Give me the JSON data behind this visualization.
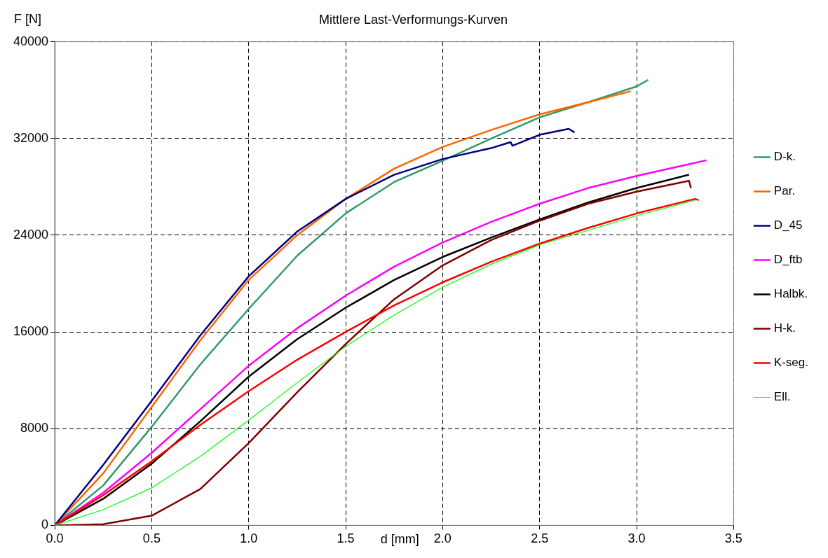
{
  "chart_data": {
    "type": "line",
    "title": "Mittlere Last-Verformungs-Kurven",
    "xlabel": "d [mm]",
    "ylabel": "F [N]",
    "xlim": [
      0,
      3.5
    ],
    "xticks": [
      {
        "value": 0,
        "label": "0.0"
      },
      0.5,
      {
        "value": 1,
        "label": "1.0"
      },
      1.5,
      {
        "value": 2,
        "label": "2.0"
      },
      2.5,
      {
        "value": 3,
        "label": "3.0"
      },
      3.5
    ],
    "ylim": [
      0,
      40000
    ],
    "yticks": [
      0,
      8000,
      16000,
      24000,
      32000,
      40000
    ],
    "grid": true,
    "legend": "right",
    "marker": "none",
    "line_style": "solid",
    "series": [
      {
        "name": "D-k.",
        "color": "#339966",
        "x": [
          0,
          0.25,
          0.5,
          0.75,
          1,
          1.25,
          1.5,
          1.75,
          2,
          2.25,
          2.5,
          2.75,
          3,
          3.06
        ],
        "values": [
          0,
          3300,
          8150,
          13300,
          17900,
          22300,
          25800,
          28400,
          30150,
          32000,
          33750,
          35000,
          36300,
          36850
        ]
      },
      {
        "name": "Par.",
        "color": "#ff6600",
        "x": [
          0,
          0.25,
          0.5,
          0.75,
          1,
          1.25,
          1.5,
          1.75,
          2,
          2.25,
          2.5,
          2.75,
          2.97
        ],
        "values": [
          0,
          4300,
          9800,
          15300,
          20300,
          24000,
          27000,
          29500,
          31300,
          32700,
          34000,
          35000,
          35900
        ]
      },
      {
        "name": "D_45",
        "color": "#000080",
        "x": [
          0,
          0.25,
          0.5,
          0.75,
          1,
          1.25,
          1.5,
          1.75,
          2,
          2.25,
          2.35,
          2.36,
          2.5,
          2.65,
          2.68
        ],
        "values": [
          0,
          5000,
          10300,
          15700,
          20600,
          24300,
          27000,
          29000,
          30300,
          31200,
          31700,
          31400,
          32300,
          32800,
          32500
        ]
      },
      {
        "name": "D_ftb",
        "color": "#ff00ff",
        "x": [
          0,
          0.25,
          0.5,
          0.75,
          1,
          1.25,
          1.5,
          1.75,
          2,
          2.25,
          2.5,
          2.75,
          3,
          3.25,
          3.36
        ],
        "values": [
          0,
          2700,
          6000,
          9600,
          13200,
          16300,
          19000,
          21400,
          23400,
          25100,
          26600,
          27900,
          28900,
          29800,
          30200
        ]
      },
      {
        "name": "Halbk.",
        "color": "#000000",
        "x": [
          0,
          0.25,
          0.5,
          0.75,
          1,
          1.25,
          1.5,
          1.75,
          2,
          2.25,
          2.5,
          2.75,
          3,
          3.27
        ],
        "values": [
          0,
          2200,
          5100,
          8600,
          12300,
          15400,
          18000,
          20300,
          22200,
          23800,
          25300,
          26700,
          27900,
          29000
        ]
      },
      {
        "name": "H-k.",
        "color": "#800000",
        "x": [
          0,
          0.25,
          0.5,
          0.75,
          1,
          1.25,
          1.5,
          1.75,
          2,
          2.25,
          2.5,
          2.75,
          3,
          3.27,
          3.28
        ],
        "values": [
          0,
          100,
          800,
          3000,
          6800,
          11000,
          15000,
          18700,
          21500,
          23600,
          25200,
          26600,
          27600,
          28500,
          27900
        ]
      },
      {
        "name": "K-seg.",
        "color": "#ff0000",
        "x": [
          0,
          0.25,
          0.5,
          0.75,
          1,
          1.25,
          1.5,
          1.75,
          2,
          2.25,
          2.5,
          2.75,
          3,
          3.3,
          3.32
        ],
        "values": [
          0,
          2500,
          5300,
          8300,
          11100,
          13700,
          16000,
          18200,
          20100,
          21800,
          23300,
          24600,
          25800,
          27000,
          26900
        ]
      },
      {
        "name": "Ell.",
        "color": "#00ff00",
        "x": [
          0,
          0.25,
          0.5,
          0.75,
          1,
          1.25,
          1.5,
          1.75,
          2,
          2.25,
          2.5,
          2.75,
          3,
          3.3
        ],
        "values": [
          0,
          1300,
          3100,
          5700,
          8700,
          11800,
          14800,
          17400,
          19700,
          21600,
          23200,
          24400,
          25600,
          26900
        ]
      }
    ]
  }
}
